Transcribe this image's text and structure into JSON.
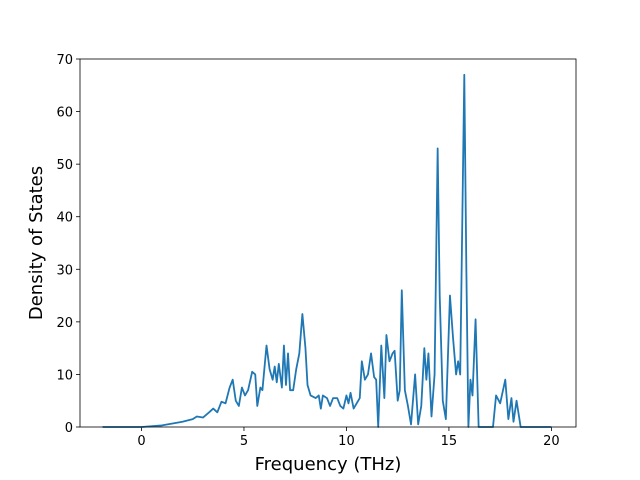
{
  "chart_data": {
    "type": "line",
    "x_label": "Frequency (THz)",
    "y_label": "Density of States",
    "x": [
      -1.9,
      0,
      1,
      2,
      2.5,
      2.7,
      3.0,
      3.3,
      3.5,
      3.7,
      3.9,
      4.1,
      4.3,
      4.45,
      4.6,
      4.75,
      4.9,
      5.05,
      5.2,
      5.4,
      5.55,
      5.65,
      5.8,
      5.9,
      6.1,
      6.25,
      6.4,
      6.5,
      6.6,
      6.7,
      6.85,
      6.95,
      7.05,
      7.15,
      7.25,
      7.4,
      7.55,
      7.7,
      7.85,
      8.0,
      8.1,
      8.25,
      8.5,
      8.65,
      8.75,
      8.85,
      9.05,
      9.2,
      9.35,
      9.55,
      9.7,
      9.85,
      10.0,
      10.1,
      10.2,
      10.35,
      10.5,
      10.65,
      10.75,
      10.9,
      11.05,
      11.2,
      11.35,
      11.45,
      11.55,
      11.7,
      11.85,
      11.95,
      12.1,
      12.25,
      12.35,
      12.5,
      12.6,
      12.7,
      12.85,
      13.0,
      13.15,
      13.35,
      13.5,
      13.65,
      13.8,
      13.9,
      14.0,
      14.15,
      14.3,
      14.45,
      14.55,
      14.7,
      14.85,
      15.05,
      15.2,
      15.35,
      15.45,
      15.55,
      15.75,
      15.85,
      15.95,
      16.05,
      16.15,
      16.3,
      16.45,
      16.8,
      17.15,
      17.3,
      17.5,
      17.75,
      17.9,
      18.05,
      18.15,
      18.3,
      18.5,
      19,
      20
    ],
    "values": [
      0,
      0,
      0.3,
      1,
      1.5,
      2,
      1.8,
      2.8,
      3.5,
      2.8,
      4.8,
      4.5,
      7.5,
      9,
      5,
      4,
      7.5,
      6,
      7,
      10.5,
      10,
      4,
      7.5,
      7,
      15.5,
      11,
      9,
      11.5,
      8.5,
      12,
      7.5,
      15.5,
      8,
      14,
      7,
      7,
      11,
      14,
      21.5,
      15,
      8,
      6,
      5.5,
      6,
      3.5,
      6,
      5.5,
      4,
      5.5,
      5.5,
      4,
      3.5,
      6,
      4.5,
      6.5,
      3.5,
      4.5,
      5.5,
      12.5,
      9,
      10,
      14,
      9.5,
      9,
      0,
      15.5,
      5.5,
      17.5,
      12.5,
      14,
      14.5,
      5,
      7,
      26,
      7,
      4,
      0.5,
      10,
      0.5,
      4,
      15,
      9,
      14,
      2,
      10,
      53,
      25,
      5,
      1.5,
      25,
      17,
      10,
      12.5,
      10,
      67,
      30,
      0,
      9,
      6,
      20.5,
      0,
      0,
      0,
      6,
      4.5,
      9,
      1.5,
      5.5,
      1,
      5,
      0,
      0,
      0
    ],
    "color": "#1f77b4",
    "xlim": [
      -3.0,
      21.2
    ],
    "xticks": [
      0,
      5,
      10,
      15,
      20
    ],
    "ylim": [
      0,
      70
    ],
    "yticks": [
      0,
      10,
      20,
      30,
      40,
      50,
      60,
      70
    ]
  }
}
